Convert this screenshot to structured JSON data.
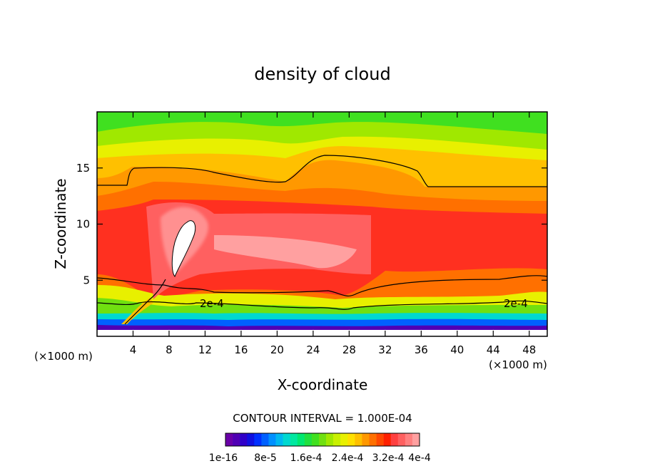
{
  "chart_data": {
    "type": "heatmap",
    "title": "density of cloud",
    "xlabel": "X-coordinate",
    "ylabel": "Z-coordinate",
    "x_unit_left": "(×1000 m)",
    "x_unit_right": "(×1000 m)",
    "xlim": [
      0,
      50
    ],
    "ylim": [
      0,
      20
    ],
    "x_ticks": [
      4,
      8,
      12,
      16,
      20,
      24,
      28,
      32,
      36,
      40,
      44,
      48
    ],
    "x_tick_labels": [
      "4",
      "8",
      "12",
      "16",
      "20",
      "24",
      "28",
      "32",
      "36",
      "40",
      "44",
      "48"
    ],
    "y_ticks": [
      5,
      10,
      15
    ],
    "y_tick_labels": [
      "5",
      "10",
      "15"
    ],
    "contour_interval_text": "CONTOUR INTERVAL = 1.000E-04",
    "contour_labels": [
      {
        "text": "2e-4",
        "x": 13,
        "z": 3.0
      },
      {
        "text": "2e-4",
        "x": 47.5,
        "z": 3.1
      }
    ],
    "colorbar": {
      "colors": [
        "#6a00a8",
        "#5000b4",
        "#3000c8",
        "#1010e0",
        "#0030ff",
        "#0060ff",
        "#0090ff",
        "#00b8f0",
        "#00d8d0",
        "#00e8a0",
        "#00e870",
        "#20e040",
        "#40e020",
        "#70e010",
        "#a0e800",
        "#c8f000",
        "#e8f000",
        "#ffe000",
        "#ffc000",
        "#ff9800",
        "#ff7000",
        "#ff4800",
        "#ff2000",
        "#ff4040",
        "#ff6060",
        "#ff8080",
        "#ffa0a0"
      ],
      "tick_labels": [
        "1e-16",
        "8e-5",
        "1.6e-4",
        "2.4e-4",
        "3.2e-4",
        "4e-4"
      ]
    },
    "grid": false
  }
}
